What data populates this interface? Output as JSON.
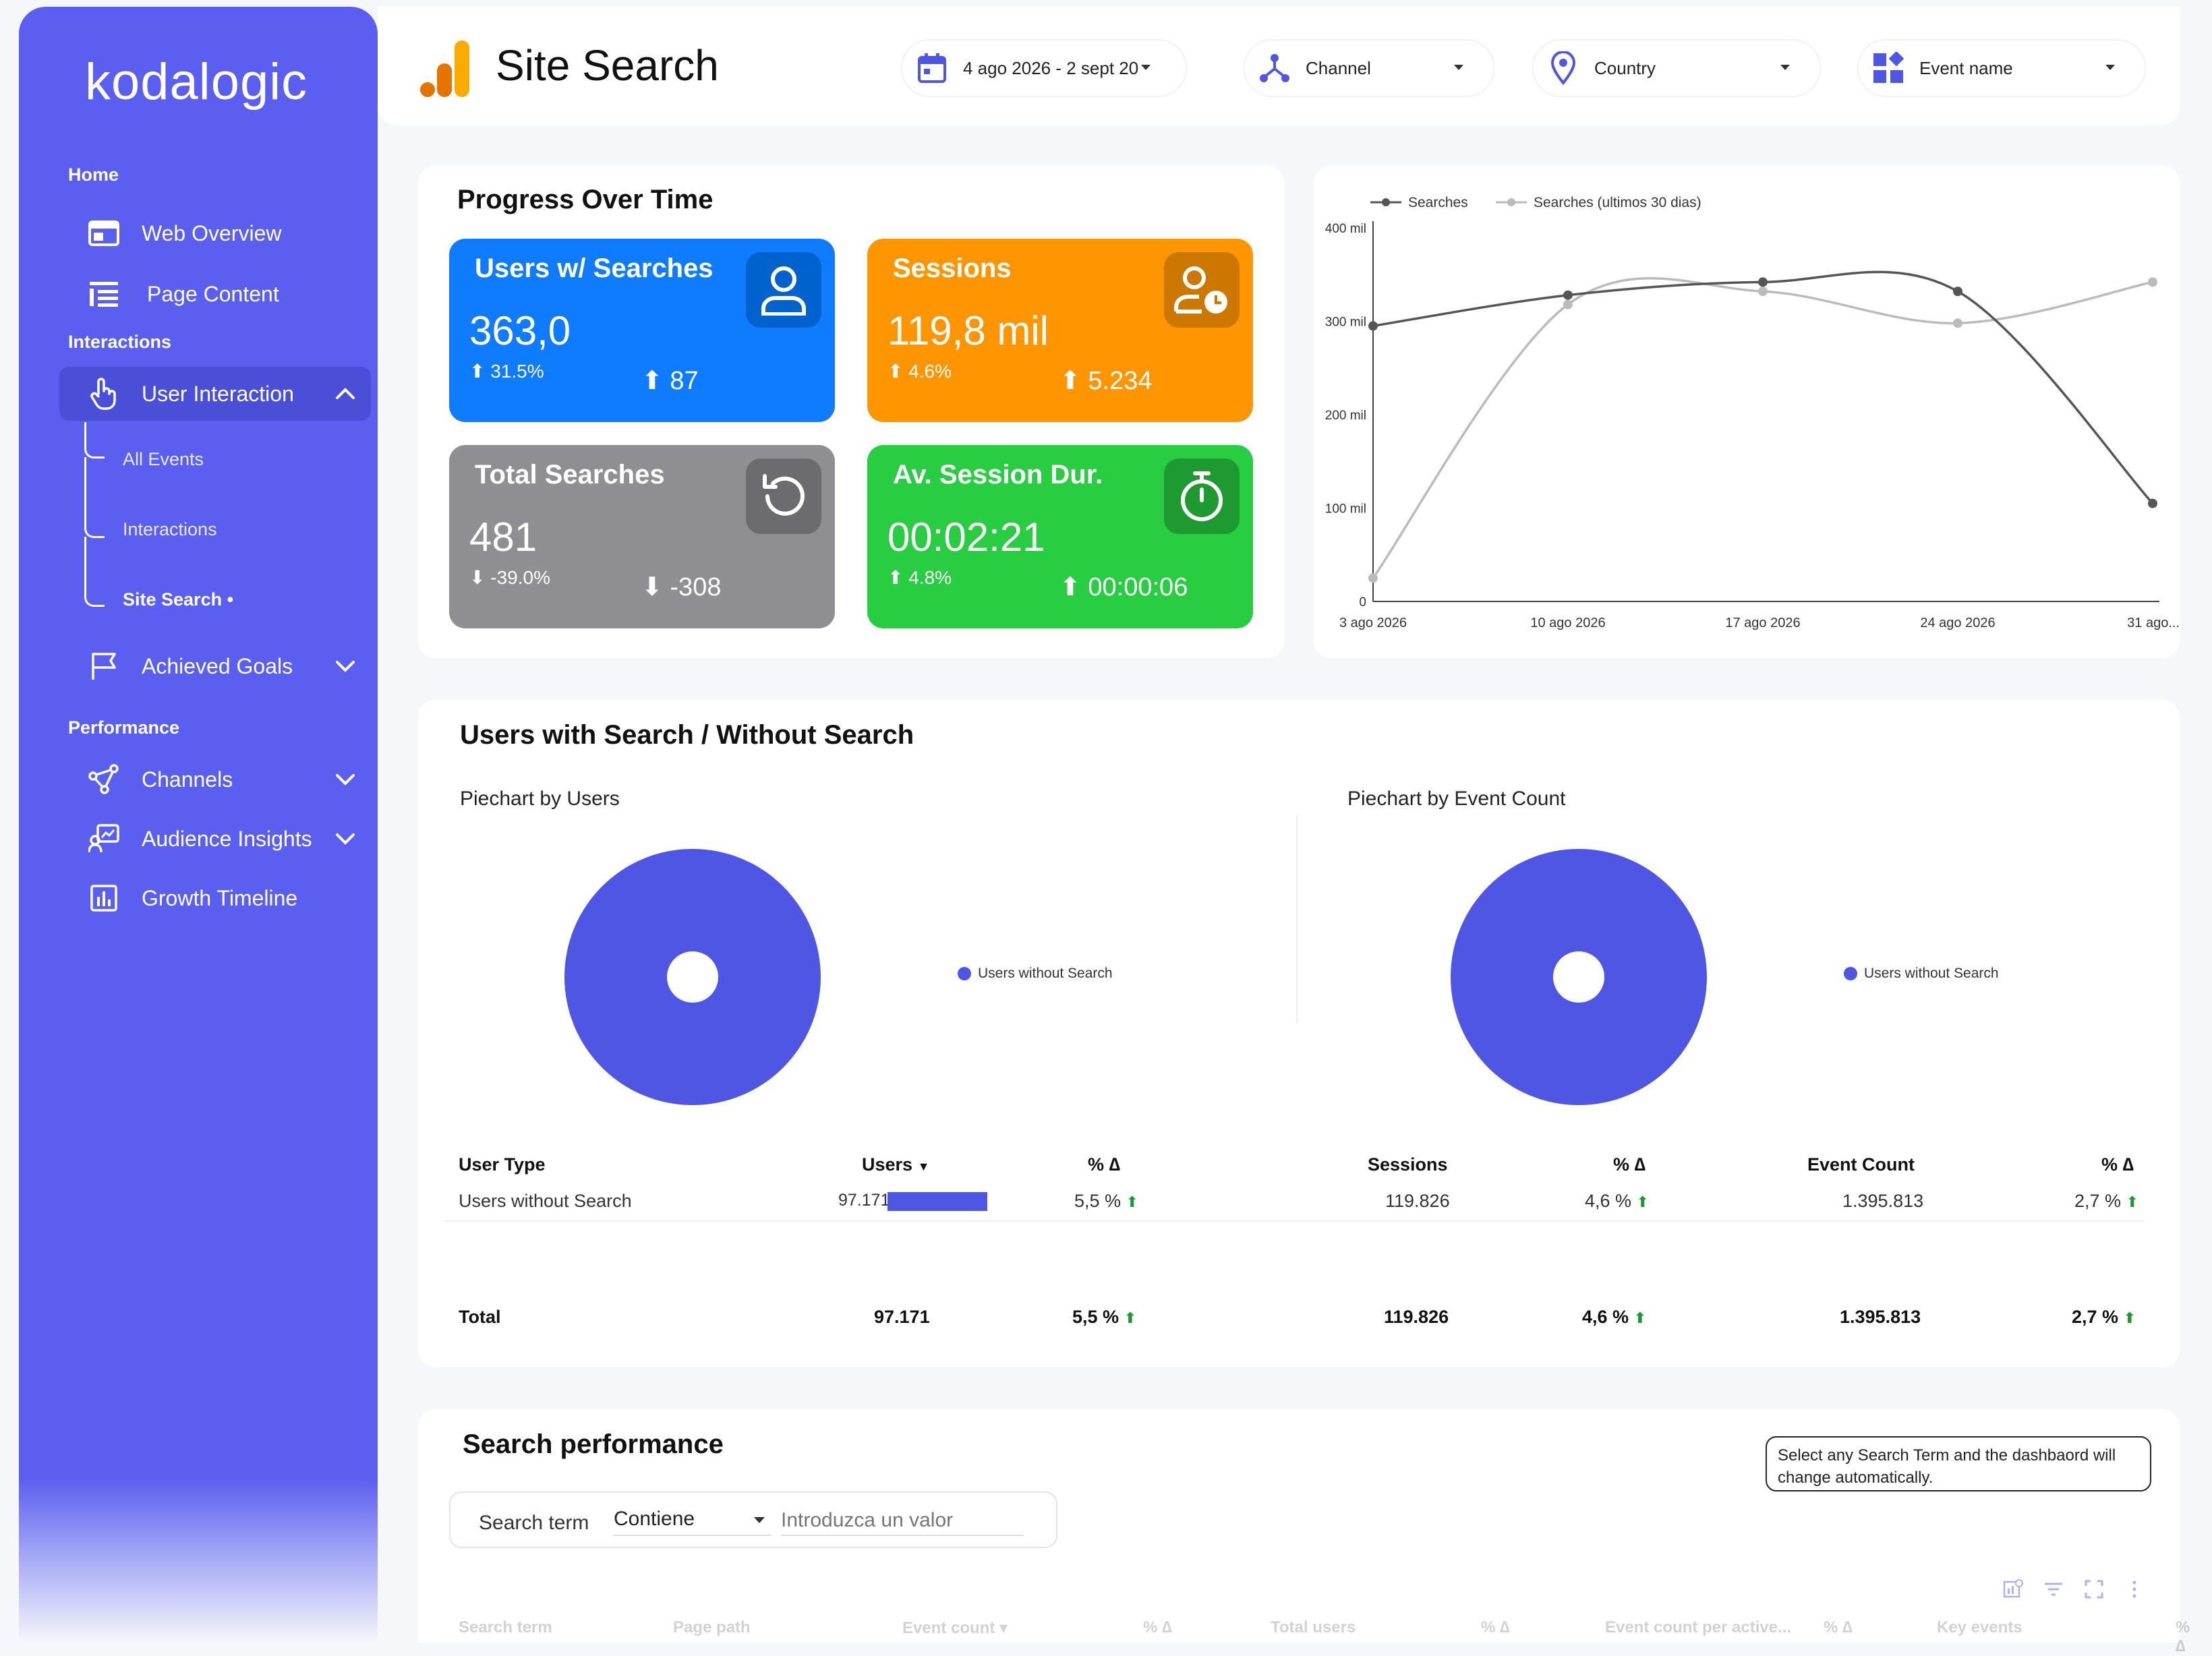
{
  "sidebar": {
    "logo": "kodalogic",
    "sections": {
      "home": "Home",
      "interactions": "Interactions",
      "performance": "Performance"
    },
    "items": {
      "web_overview": "Web Overview",
      "page_content": "Page Content",
      "user_interaction": "User Interaction",
      "all_events": "All Events",
      "interactions": "Interactions",
      "site_search": "Site Search •",
      "achieved_goals": "Achieved Goals",
      "channels": "Channels",
      "audience_insights": "Audience Insights",
      "growth_timeline": "Growth Timeline"
    }
  },
  "header": {
    "title": "Site Search",
    "filters": {
      "date": "4 ago 2026 - 2 sept 20",
      "channel": "Channel",
      "country": "Country",
      "event_name": "Event name"
    }
  },
  "progress": {
    "title": "Progress Over Time",
    "kpis": {
      "users": {
        "title": "Users w/ Searches",
        "value": "363,0",
        "pct": "31.5%",
        "delta": "87",
        "color": "#0f7bff"
      },
      "sessions": {
        "title": "Sessions",
        "value": "119,8 mil",
        "pct": "4.6%",
        "delta": "5.234",
        "color": "#ff9500"
      },
      "searches": {
        "title": "Total Searches",
        "value": "481",
        "pct": "-39.0%",
        "delta": "-308",
        "color": "#8e8e93"
      },
      "duration": {
        "title": "Av. Session Dur.",
        "value": "00:02:21",
        "pct": "4.8%",
        "delta": "00:00:06",
        "color": "#28cd41"
      }
    }
  },
  "chart_data": {
    "type": "line",
    "x": [
      "3 ago 2026",
      "10 ago 2026",
      "17 ago 2026",
      "24 ago 2026",
      "31 ago..."
    ],
    "y_ticks": [
      "400 mil",
      "300 mil",
      "200 mil",
      "100 mil",
      "0"
    ],
    "ylim": [
      0,
      400
    ],
    "series": [
      {
        "name": "Searches",
        "values": [
          295,
          328,
          342,
          332,
          105
        ],
        "color": "#555555"
      },
      {
        "name": "Searches (ultimos 30 dias)",
        "values": [
          25,
          318,
          332,
          298,
          342
        ],
        "color": "#bbbbbb"
      }
    ]
  },
  "users_search": {
    "title": "Users with Search / Without Search",
    "pie1_title": "Piechart by Users",
    "pie2_title": "Piechart by Event Count",
    "legend": "Users without Search",
    "pie_color": "#4f56e4",
    "table": {
      "headers": {
        "user_type": "User Type",
        "users": "Users",
        "pct1": "% ∆",
        "sessions": "Sessions",
        "pct2": "% ∆",
        "event_count": "Event Count",
        "pct3": "% ∆"
      },
      "row": {
        "user_type": "Users without Search",
        "users": "97.171",
        "pct1": "5,5 %",
        "sessions": "119.826",
        "pct2": "4,6 %",
        "event_count": "1.395.813",
        "pct3": "2,7 %"
      },
      "total": {
        "label": "Total",
        "users": "97.171",
        "pct1": "5,5 %",
        "sessions": "119.826",
        "pct2": "4,6 %",
        "event_count": "1.395.813",
        "pct3": "2,7 %"
      }
    }
  },
  "search_perf": {
    "title": "Search performance",
    "note": "Select any Search Term and the dashbaord will change automatically.",
    "filter_label": "Search term",
    "operator": "Contiene",
    "placeholder": "Introduzca un valor",
    "columns": [
      "Search term",
      "Page path",
      "Event count ▾",
      "% ∆",
      "Total users",
      "% ∆",
      "Event count per active...",
      "% ∆",
      "Key events",
      "% ∆"
    ]
  }
}
